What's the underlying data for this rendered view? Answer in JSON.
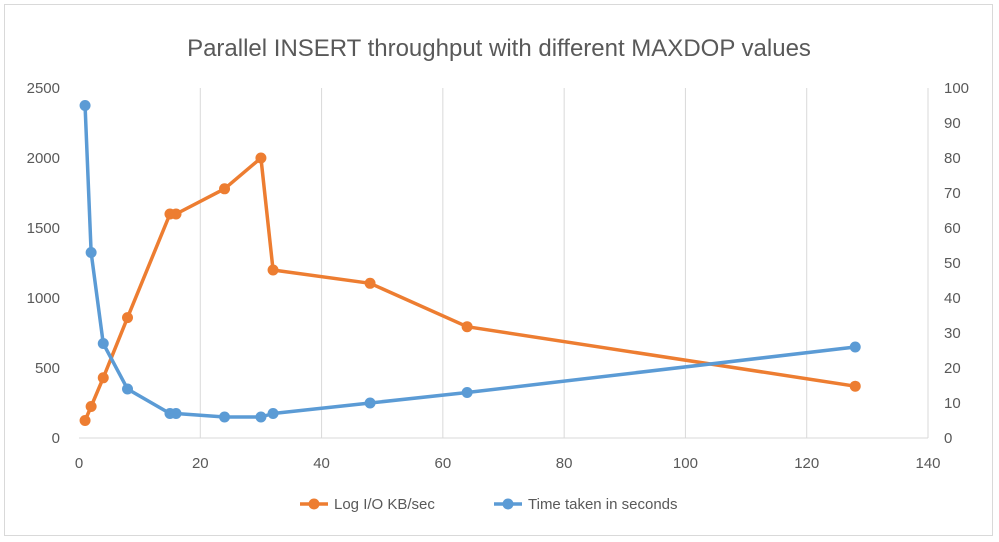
{
  "chart_data": {
    "type": "line",
    "title": "Parallel INSERT throughput with different MAXDOP values",
    "xlabel": "",
    "ylabel": "",
    "y2label": "",
    "xlim": [
      0,
      140
    ],
    "ylim": [
      0,
      2500
    ],
    "y2lim": [
      0,
      100
    ],
    "xticks": [
      "0",
      "20",
      "40",
      "60",
      "80",
      "100",
      "120",
      "140"
    ],
    "yticks": [
      "0",
      "500",
      "1000",
      "1500",
      "2000",
      "2500"
    ],
    "y2ticks": [
      "0",
      "10",
      "20",
      "30",
      "40",
      "50",
      "60",
      "70",
      "80",
      "90",
      "100"
    ],
    "grid": "vertical",
    "legend_position": "bottom",
    "series": [
      {
        "name": "Log I/O KB/sec",
        "axis": "left",
        "color": "#ed7d31",
        "x": [
          1,
          2,
          4,
          8,
          15,
          16,
          24,
          30,
          32,
          48,
          64,
          128
        ],
        "y": [
          125,
          225,
          430,
          860,
          1600,
          1600,
          1780,
          2000,
          1200,
          1105,
          795,
          370
        ]
      },
      {
        "name": "Time taken in seconds",
        "axis": "right",
        "color": "#5b9bd5",
        "x": [
          1,
          2,
          4,
          8,
          15,
          16,
          24,
          30,
          32,
          48,
          64,
          128
        ],
        "y": [
          95,
          53,
          27,
          14,
          7,
          7,
          6,
          6,
          7,
          10,
          13,
          26
        ]
      }
    ]
  }
}
